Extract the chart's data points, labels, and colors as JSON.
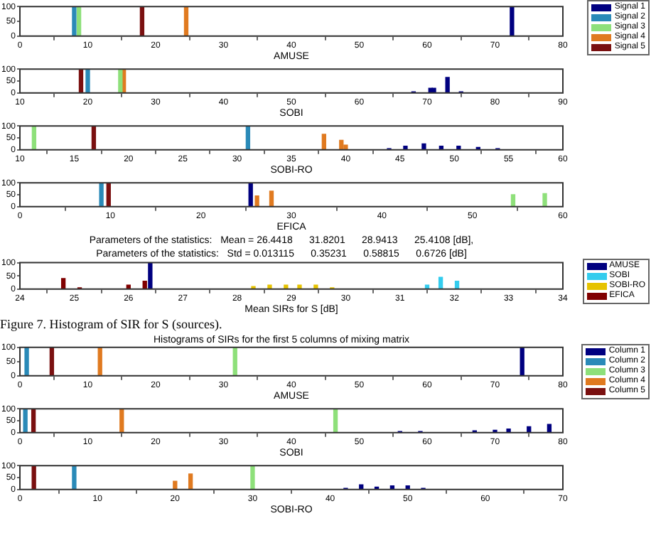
{
  "chart_data": [
    {
      "type": "bar",
      "xlabel": "AMUSE",
      "xlim": [
        0,
        80
      ],
      "xticks": [
        0,
        10,
        20,
        30,
        40,
        50,
        60,
        70,
        80
      ],
      "ylim": [
        0,
        100
      ],
      "yticks": [
        0,
        50,
        100
      ],
      "grid": false,
      "legend": "right",
      "series": [
        {
          "name": "Signal 1",
          "color": "#000080",
          "x": [
            72.5
          ],
          "values": [
            100
          ]
        },
        {
          "name": "Signal 2",
          "color": "#2a8ab8",
          "x": [
            8
          ],
          "values": [
            100
          ]
        },
        {
          "name": "Signal 3",
          "color": "#8ee07a",
          "x": [
            8.7
          ],
          "values": [
            100
          ]
        },
        {
          "name": "Signal 4",
          "color": "#e07a20",
          "x": [
            24.5
          ],
          "values": [
            100
          ]
        },
        {
          "name": "Signal 5",
          "color": "#7a1010",
          "x": [
            18
          ],
          "values": [
            100
          ]
        }
      ]
    },
    {
      "type": "bar",
      "xlabel": "SOBI",
      "xlim": [
        10,
        90
      ],
      "xticks": [
        10,
        20,
        30,
        40,
        50,
        60,
        70,
        80,
        90
      ],
      "ylim": [
        0,
        100
      ],
      "yticks": [
        0,
        50,
        100
      ],
      "grid": false,
      "series": [
        {
          "color": "#000080",
          "x": [
            68,
            70.5,
            71,
            73,
            75
          ],
          "values": [
            5,
            20,
            20,
            65,
            5
          ]
        },
        {
          "color": "#2a8ab8",
          "x": [
            20
          ],
          "values": [
            100
          ]
        },
        {
          "color": "#8ee07a",
          "x": [
            24.8
          ],
          "values": [
            100
          ]
        },
        {
          "color": "#e07a20",
          "x": [
            25.3
          ],
          "values": [
            100
          ]
        },
        {
          "color": "#7a1010",
          "x": [
            19
          ],
          "values": [
            100
          ]
        }
      ]
    },
    {
      "type": "bar",
      "xlabel": "SOBI-RO",
      "xlim": [
        10,
        60
      ],
      "xticks": [
        10,
        15,
        20,
        25,
        30,
        35,
        40,
        45,
        50,
        55,
        60
      ],
      "ylim": [
        0,
        100
      ],
      "yticks": [
        0,
        50,
        100
      ],
      "grid": false,
      "series": [
        {
          "color": "#000080",
          "x": [
            44,
            45.5,
            47.2,
            48.8,
            50.4,
            52.2,
            54
          ],
          "values": [
            5,
            15,
            25,
            15,
            15,
            10,
            5
          ]
        },
        {
          "color": "#2a8ab8",
          "x": [
            31
          ],
          "values": [
            100
          ]
        },
        {
          "color": "#8ee07a",
          "x": [
            11.3
          ],
          "values": [
            100
          ]
        },
        {
          "color": "#e07a20",
          "x": [
            38,
            39.6,
            40
          ],
          "values": [
            65,
            40,
            20
          ]
        },
        {
          "color": "#7a1010",
          "x": [
            16.8
          ],
          "values": [
            100
          ]
        }
      ]
    },
    {
      "type": "bar",
      "xlabel": "EFICA",
      "xlim": [
        0,
        60
      ],
      "xticks": [
        0,
        10,
        20,
        30,
        40,
        50,
        60
      ],
      "ylim": [
        0,
        100
      ],
      "yticks": [
        0,
        50,
        100
      ],
      "grid": false,
      "series": [
        {
          "color": "#000080",
          "x": [
            25.5
          ],
          "values": [
            100
          ]
        },
        {
          "color": "#2a8ab8",
          "x": [
            9
          ],
          "values": [
            100
          ]
        },
        {
          "color": "#8ee07a",
          "x": [
            54.5,
            58
          ],
          "values": [
            50,
            55
          ]
        },
        {
          "color": "#e07a20",
          "x": [
            26.2,
            27.8
          ],
          "values": [
            45,
            65
          ]
        },
        {
          "color": "#7a1010",
          "x": [
            9.8
          ],
          "values": [
            100
          ]
        }
      ]
    },
    {
      "type": "bar",
      "title": "Parameters of the statistics:   Mean = 26.4418      31.8201      28.9413      25.4108 [dB],",
      "subtitle": "Parameters of the statistics:   Std = 0.013115      0.35231      0.58815      0.6726 [dB]",
      "xlabel": "Mean SIRs for S [dB]",
      "xlim": [
        24,
        34
      ],
      "xticks": [
        24,
        25,
        26,
        27,
        28,
        29,
        30,
        31,
        32,
        33,
        34
      ],
      "ylim": [
        0,
        100
      ],
      "yticks": [
        0,
        50,
        100
      ],
      "grid": false,
      "legend": "right",
      "annotations": [
        "Figure 7. Histogram of SIR for S (sources)."
      ],
      "series": [
        {
          "name": "AMUSE",
          "color": "#000080",
          "x": [
            26.4
          ],
          "values": [
            100
          ]
        },
        {
          "name": "SOBI",
          "color": "#33ccee",
          "x": [
            31.5,
            31.75,
            32.05
          ],
          "values": [
            15,
            45,
            30
          ]
        },
        {
          "name": "SOBI-RO",
          "color": "#e6c300",
          "x": [
            28.3,
            28.6,
            28.9,
            29.15,
            29.45,
            29.75
          ],
          "values": [
            10,
            15,
            15,
            15,
            15,
            5
          ]
        },
        {
          "name": "EFICA",
          "color": "#800000",
          "x": [
            24.8,
            25.1,
            26,
            26.3
          ],
          "values": [
            40,
            5,
            15,
            30
          ]
        }
      ]
    },
    {
      "type": "bar",
      "title": "Histograms of SIRs for the first 5 columns of mixing matrix",
      "xlabel": "AMUSE",
      "xlim": [
        0,
        80
      ],
      "xticks": [
        0,
        10,
        20,
        30,
        40,
        50,
        60,
        70,
        80
      ],
      "ylim": [
        0,
        100
      ],
      "yticks": [
        0,
        50,
        100
      ],
      "grid": false,
      "legend": "right",
      "series": [
        {
          "name": "Column 1",
          "color": "#000080",
          "x": [
            74
          ],
          "values": [
            100
          ]
        },
        {
          "name": "Column 2",
          "color": "#2a8ab8",
          "x": [
            1
          ],
          "values": [
            100
          ]
        },
        {
          "name": "Column 3",
          "color": "#8ee07a",
          "x": [
            31.7
          ],
          "values": [
            100
          ]
        },
        {
          "name": "Column 4",
          "color": "#e07a20",
          "x": [
            11.8
          ],
          "values": [
            100
          ]
        },
        {
          "name": "Column 5",
          "color": "#7a1010",
          "x": [
            4.7
          ],
          "values": [
            100
          ]
        }
      ]
    },
    {
      "type": "bar",
      "xlabel": "SOBI",
      "xlim": [
        0,
        80
      ],
      "xticks": [
        0,
        10,
        20,
        30,
        40,
        50,
        60,
        70,
        80
      ],
      "ylim": [
        0,
        100
      ],
      "yticks": [
        0,
        50,
        100
      ],
      "grid": false,
      "series": [
        {
          "color": "#000080",
          "x": [
            56,
            59,
            67,
            70,
            72,
            75,
            78
          ],
          "values": [
            5,
            5,
            8,
            10,
            15,
            25,
            35
          ]
        },
        {
          "color": "#2a8ab8",
          "x": [
            0.8
          ],
          "values": [
            100
          ]
        },
        {
          "color": "#8ee07a",
          "x": [
            46.5
          ],
          "values": [
            100
          ]
        },
        {
          "color": "#e07a20",
          "x": [
            15
          ],
          "values": [
            100
          ]
        },
        {
          "color": "#7a1010",
          "x": [
            2
          ],
          "values": [
            100
          ]
        }
      ]
    },
    {
      "type": "bar",
      "xlabel": "SOBI-RO",
      "xlim": [
        0,
        70
      ],
      "xticks": [
        0,
        10,
        20,
        30,
        40,
        50,
        60,
        70
      ],
      "ylim": [
        0,
        100
      ],
      "yticks": [
        0,
        50,
        100
      ],
      "grid": false,
      "series": [
        {
          "color": "#000080",
          "x": [
            42,
            44,
            46,
            48,
            50,
            52
          ],
          "values": [
            5,
            20,
            10,
            15,
            15,
            5
          ]
        },
        {
          "color": "#2a8ab8",
          "x": [
            7
          ],
          "values": [
            100
          ]
        },
        {
          "color": "#8ee07a",
          "x": [
            30
          ],
          "values": [
            100
          ]
        },
        {
          "color": "#e07a20",
          "x": [
            20,
            22
          ],
          "values": [
            35,
            65
          ]
        },
        {
          "color": "#7a1010",
          "x": [
            1.8
          ],
          "values": [
            100
          ]
        }
      ]
    }
  ]
}
